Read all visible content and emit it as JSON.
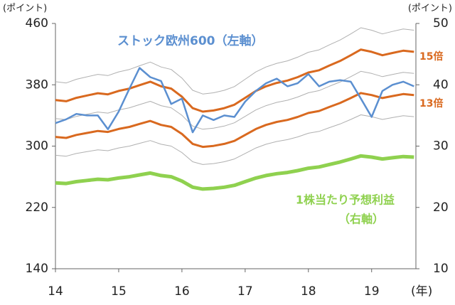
{
  "chart_data": {
    "type": "line",
    "ylabel": "(ポイント)",
    "y2label": "(ポイント)",
    "xlabel": "(年)",
    "xlim": [
      14,
      19.7
    ],
    "xticks": [
      14,
      15,
      16,
      17,
      18,
      19
    ],
    "ylim": [
      140,
      460
    ],
    "yticks": [
      140,
      220,
      300,
      380,
      460
    ],
    "y2lim": [
      10,
      50
    ],
    "y2ticks": [
      10,
      20,
      30,
      40,
      50
    ],
    "x": [
      14,
      14.17,
      14.33,
      14.5,
      14.67,
      14.83,
      15,
      15.17,
      15.33,
      15.5,
      15.67,
      15.83,
      16,
      16.17,
      16.33,
      16.5,
      16.67,
      16.83,
      17,
      17.17,
      17.33,
      17.5,
      17.67,
      17.83,
      18,
      18.17,
      18.33,
      18.5,
      18.67,
      18.83,
      19,
      19.17,
      19.33,
      19.5,
      19.67
    ],
    "series": [
      {
        "color": "#b0b0b0",
        "values": [
          384,
          382.4,
          387.2,
          390.4,
          393.6,
          392,
          396.8,
          400,
          404.8,
          409.6,
          403.2,
          400,
          388.8,
          372.8,
          368,
          369.6,
          372.8,
          377.6,
          387.2,
          396.8,
          403.2,
          408,
          411.2,
          416,
          422.4,
          425.6,
          432,
          438.4,
          446.4,
          454.4,
          451.2,
          446.4,
          449.6,
          452.8,
          451.2
        ]
      },
      {
        "color": "#b0b0b0",
        "values": [
          336,
          334.6,
          338.8,
          341.6,
          344.4,
          343,
          347.2,
          350,
          354.2,
          358.4,
          352.8,
          350,
          340.2,
          326.2,
          322,
          323.4,
          326.2,
          330.4,
          338.8,
          347.2,
          352.8,
          357,
          359.8,
          364,
          369.6,
          372.4,
          378,
          383.6,
          390.6,
          397.6,
          394.8,
          390.6,
          393.4,
          396.2,
          394.8
        ]
      },
      {
        "color": "#b0b0b0",
        "values": [
          288,
          286.8,
          290.4,
          292.8,
          295.2,
          294,
          297.6,
          300,
          303.6,
          307.2,
          302.4,
          300,
          291.6,
          279.6,
          276,
          277.2,
          279.6,
          283.2,
          290.4,
          297.6,
          302.4,
          306,
          308.4,
          312,
          316.8,
          319.2,
          324,
          328.8,
          334.8,
          340.8,
          338.4,
          334.8,
          337.2,
          339.6,
          338.4
        ]
      },
      {
        "name": "15倍",
        "color": "#d9691f",
        "values": [
          360,
          358.5,
          363,
          366,
          369,
          367.5,
          372,
          375,
          379.5,
          384,
          378,
          375,
          364.5,
          349.5,
          345,
          346.5,
          349.5,
          354,
          363,
          372,
          378,
          382.5,
          385.5,
          390,
          396,
          399,
          405,
          411,
          418.5,
          426,
          423,
          418.5,
          421.5,
          424.5,
          423
        ]
      },
      {
        "name": "13倍",
        "color": "#d9691f",
        "values": [
          312,
          310.7,
          314.6,
          317.2,
          319.8,
          318.5,
          322.4,
          325,
          328.9,
          332.8,
          327.6,
          325,
          315.9,
          302.9,
          299,
          300.3,
          302.9,
          306.8,
          314.6,
          322.4,
          327.6,
          331.5,
          334.1,
          338,
          343.2,
          345.8,
          351,
          356.2,
          362.7,
          369.2,
          366.6,
          362.7,
          365.3,
          367.9,
          366.6
        ]
      },
      {
        "name": "ストック欧州600（左軸）",
        "color": "#5b8fd0",
        "values": [
          330,
          335,
          342,
          340,
          340,
          322,
          345,
          375,
          402,
          390,
          385,
          355,
          362,
          318,
          340,
          334,
          340,
          338,
          358,
          372,
          382,
          388,
          378,
          382,
          394,
          378,
          384,
          386,
          384,
          362,
          338,
          372,
          380,
          384,
          378
        ]
      },
      {
        "name_lines": [
          "1株当たり予想利益",
          "（右軸）"
        ],
        "color": "#8fd14f",
        "axis": "y2",
        "values": [
          24.0,
          23.9,
          24.2,
          24.4,
          24.6,
          24.5,
          24.8,
          25.0,
          25.3,
          25.6,
          25.2,
          25.0,
          24.3,
          23.3,
          23.0,
          23.1,
          23.3,
          23.6,
          24.2,
          24.8,
          25.2,
          25.5,
          25.7,
          26.0,
          26.4,
          26.6,
          27.0,
          27.4,
          27.9,
          28.4,
          28.2,
          27.9,
          28.1,
          28.3,
          28.2
        ]
      }
    ]
  }
}
